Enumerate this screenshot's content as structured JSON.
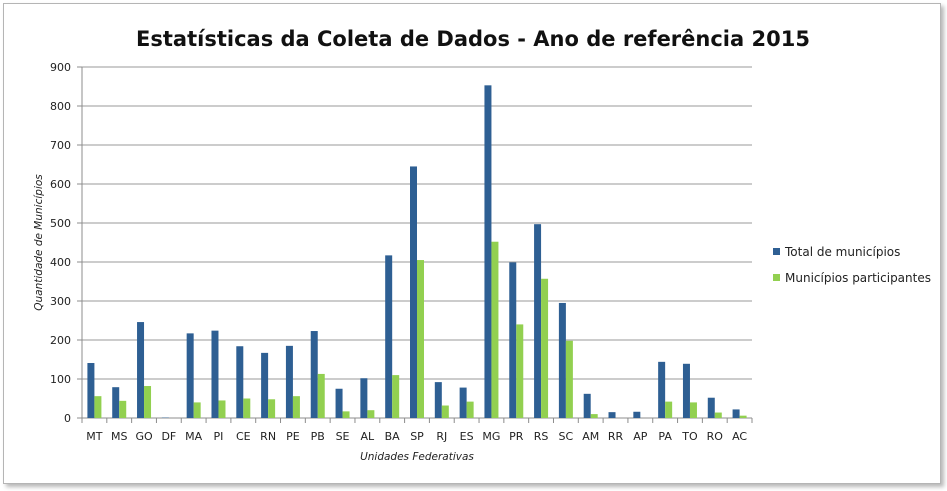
{
  "chart_data": {
    "type": "bar",
    "title": "Estatísticas da Coleta de Dados - Ano de referência 2015",
    "xlabel": "Unidades Federativas",
    "ylabel": "Quantidade de Municípios",
    "ylim": [
      0,
      900
    ],
    "yticks": [
      0,
      100,
      200,
      300,
      400,
      500,
      600,
      700,
      800,
      900
    ],
    "grid": true,
    "legend_position": "right",
    "categories": [
      "MT",
      "MS",
      "GO",
      "DF",
      "MA",
      "PI",
      "CE",
      "RN",
      "PE",
      "PB",
      "SE",
      "AL",
      "BA",
      "SP",
      "RJ",
      "ES",
      "MG",
      "PR",
      "RS",
      "SC",
      "AM",
      "RR",
      "AP",
      "PA",
      "TO",
      "RO",
      "AC"
    ],
    "series": [
      {
        "name": "Total de municípios",
        "color": "#2e5f93",
        "values": [
          141,
          79,
          246,
          1,
          217,
          224,
          184,
          167,
          185,
          223,
          75,
          102,
          417,
          645,
          92,
          78,
          853,
          399,
          497,
          295,
          62,
          15,
          16,
          144,
          139,
          52,
          22
        ]
      },
      {
        "name": "Municípios participantes",
        "color": "#92d050",
        "values": [
          56,
          44,
          82,
          0,
          40,
          45,
          50,
          48,
          56,
          113,
          17,
          20,
          110,
          405,
          32,
          42,
          452,
          240,
          357,
          198,
          10,
          0,
          0,
          42,
          40,
          14,
          6
        ]
      }
    ]
  }
}
